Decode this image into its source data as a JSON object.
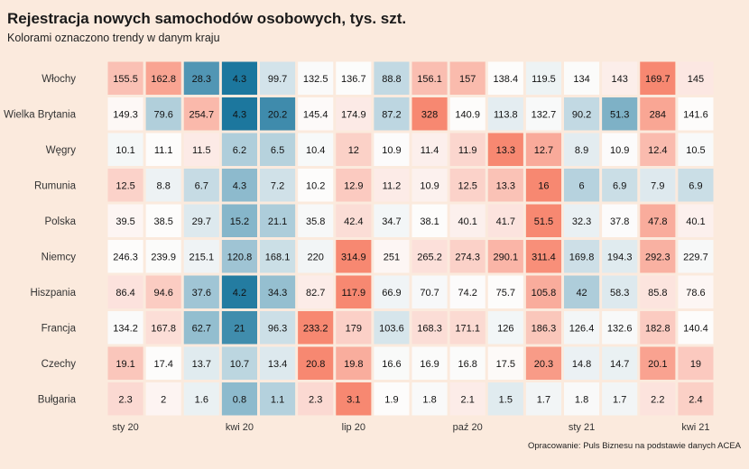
{
  "chart_data": {
    "type": "heatmap",
    "title": "Rejestracja nowych samochodów osobowych, tys. szt.",
    "subtitle": "Kolorami oznaczono trendy w danym kraju",
    "caption": "Opracowanie: Puls Biznesu na podstawie danych ACEA",
    "x_tick_labels": [
      "sty 20",
      "",
      "",
      "kwi 20",
      "",
      "",
      "lip 20",
      "",
      "",
      "paź 20",
      "",
      "",
      "sty 21",
      "",
      "",
      "kwi 21"
    ],
    "rows": [
      {
        "label": "Włochy",
        "values": [
          155.5,
          162.8,
          28.3,
          4.3,
          99.7,
          132.5,
          136.7,
          88.8,
          156.1,
          157,
          138.4,
          119.5,
          134,
          143,
          169.7,
          145
        ]
      },
      {
        "label": "Wielka Brytania",
        "values": [
          149.3,
          79.6,
          254.7,
          4.3,
          20.2,
          145.4,
          174.9,
          87.2,
          328,
          140.9,
          113.8,
          132.7,
          90.2,
          51.3,
          284,
          141.6
        ]
      },
      {
        "label": "Węgry",
        "values": [
          10.1,
          11.1,
          11.5,
          6.2,
          6.5,
          10.4,
          12,
          10.9,
          11.4,
          11.9,
          13.3,
          12.7,
          8.9,
          10.9,
          12.4,
          10.5
        ]
      },
      {
        "label": "Rumunia",
        "values": [
          12.5,
          8.8,
          6.7,
          4.3,
          7.2,
          10.2,
          12.9,
          11.2,
          10.9,
          12.5,
          13.3,
          16,
          6,
          6.9,
          7.9,
          6.9
        ]
      },
      {
        "label": "Polska",
        "values": [
          39.5,
          38.5,
          29.7,
          15.2,
          21.1,
          35.8,
          42.4,
          34.7,
          38.1,
          40.1,
          41.7,
          51.5,
          32.3,
          37.8,
          47.8,
          40.1
        ]
      },
      {
        "label": "Niemcy",
        "values": [
          246.3,
          239.9,
          215.1,
          120.8,
          168.1,
          220,
          314.9,
          251,
          265.2,
          274.3,
          290.1,
          311.4,
          169.8,
          194.3,
          292.3,
          229.7
        ]
      },
      {
        "label": "Hiszpania",
        "values": [
          86.4,
          94.6,
          37.6,
          4.2,
          34.3,
          82.7,
          117.9,
          66.9,
          70.7,
          74.2,
          75.7,
          105.8,
          42,
          58.3,
          85.8,
          78.6
        ]
      },
      {
        "label": "Francja",
        "values": [
          134.2,
          167.8,
          62.7,
          21,
          96.3,
          233.2,
          179,
          103.6,
          168.3,
          171.1,
          126,
          186.3,
          126.4,
          132.6,
          182.8,
          140.4
        ]
      },
      {
        "label": "Czechy",
        "values": [
          19.1,
          17.4,
          13.7,
          10.7,
          13.4,
          20.8,
          19.8,
          16.6,
          16.9,
          16.8,
          17.5,
          20.3,
          14.8,
          14.7,
          20.1,
          19
        ]
      },
      {
        "label": "Bułgaria",
        "values": [
          2.3,
          2,
          1.6,
          0.8,
          1.1,
          2.3,
          3.1,
          1.9,
          1.8,
          2.1,
          1.5,
          1.7,
          1.8,
          1.7,
          2.2,
          2.4
        ]
      }
    ],
    "color_scale": {
      "low": "#0b6d97",
      "mid": "#fdfcfb",
      "high": "#f7826a"
    },
    "background": "#fbeadd",
    "legend": "none"
  }
}
